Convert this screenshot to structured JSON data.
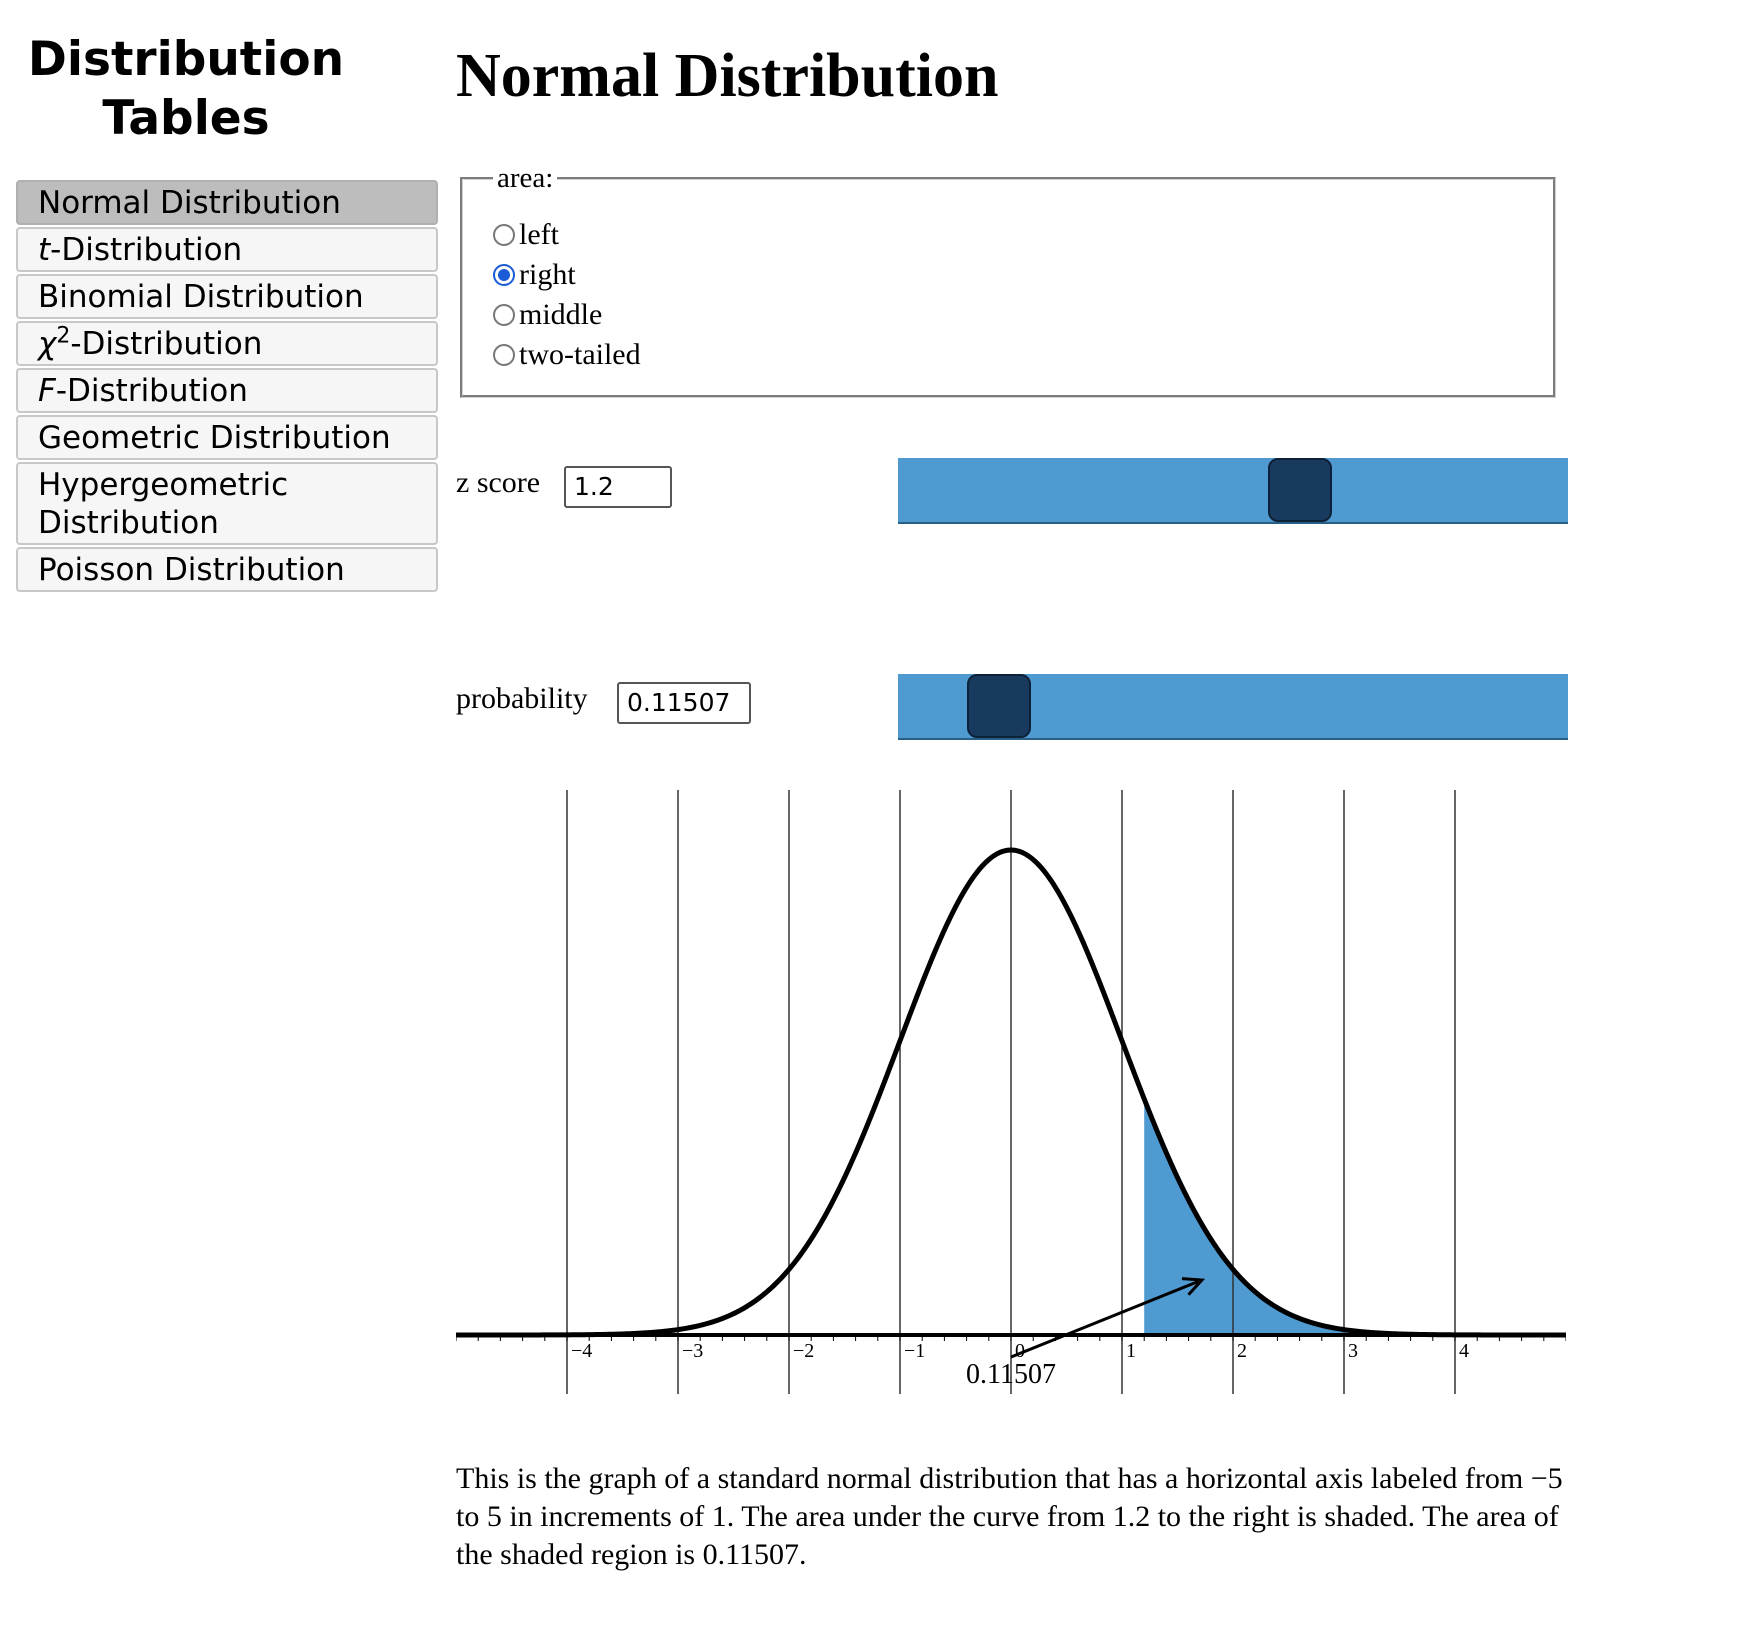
{
  "sidebar": {
    "title": "Distribution Tables",
    "items": [
      {
        "label": "Normal Distribution",
        "active": true
      },
      {
        "prefix": "t",
        "label": "-Distribution",
        "active": false
      },
      {
        "label": "Binomial Distribution",
        "active": false
      },
      {
        "prefix": "χ",
        "sup": "2",
        "label": "-Distribution",
        "active": false
      },
      {
        "prefix": "F",
        "label": "-Distribution",
        "active": false
      },
      {
        "label": "Geometric Distribution",
        "active": false
      },
      {
        "label": "Hypergeometric Distribution",
        "active": false
      },
      {
        "label": "Poisson Distribution",
        "active": false
      }
    ]
  },
  "main": {
    "title": "Normal Distribution",
    "area": {
      "legend": "area:",
      "options": [
        {
          "label": "left",
          "checked": false
        },
        {
          "label": "right",
          "checked": true
        },
        {
          "label": "middle",
          "checked": false
        },
        {
          "label": "two-tailed",
          "checked": false
        }
      ]
    },
    "z_score": {
      "label": "z score",
      "value": "1.2",
      "slider_fraction": 0.6
    },
    "probability": {
      "label": "probability",
      "value": "0.11507",
      "slider_fraction": 0.15
    },
    "description": "This is the graph of a standard normal distribution that has a horizontal axis labeled from −5 to 5 in increments of 1. The area under the curve from 1.2 to the right is shaded. The area of the shaded region is 0.11507."
  },
  "chart_data": {
    "type": "area",
    "distribution": "standard normal",
    "mean": 0,
    "sd": 1,
    "xlim": [
      -5,
      5
    ],
    "x_ticks": [
      "−4",
      "−3",
      "−2",
      "−1",
      "0",
      "1",
      "2",
      "3",
      "4"
    ],
    "x_tick_values": [
      -4,
      -3,
      -2,
      -1,
      0,
      1,
      2,
      3,
      4
    ],
    "shaded_from": 1.2,
    "shaded_to": 5,
    "shaded_area_label": "0.11507",
    "grid": true,
    "colors": {
      "shade": "#4f9bd1",
      "curve": "#000000",
      "grid": "#333333"
    }
  },
  "colors": {
    "slider_track": "#4f9bd1",
    "slider_handle": "#183a5e",
    "radio_checked": "#1a5bd6",
    "nav_active": "#bdbdbd"
  }
}
